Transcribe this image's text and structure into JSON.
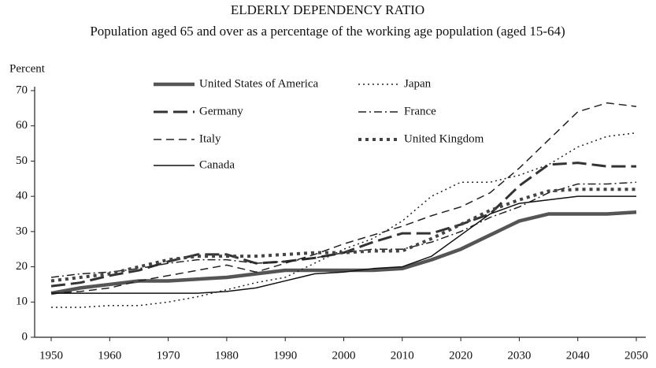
{
  "chart_data": {
    "type": "line",
    "title": "ELDERLY DEPENDENCY RATIO",
    "subtitle": "Population aged 65 and over as a percentage of the working age population (aged 15-64)",
    "y_label": "Percent",
    "x": [
      1950,
      1955,
      1960,
      1965,
      1970,
      1975,
      1980,
      1985,
      1990,
      1995,
      2000,
      2005,
      2010,
      2015,
      2020,
      2025,
      2030,
      2035,
      2040,
      2045,
      2050
    ],
    "series": [
      {
        "name": "United States of America",
        "color": "#555555",
        "values": [
          12.5,
          14,
          15,
          16,
          16,
          16.5,
          17,
          18,
          19,
          19,
          19,
          19,
          19.5,
          22,
          25,
          29,
          33,
          35,
          35,
          35,
          35.5
        ]
      },
      {
        "name": "Japan",
        "color": "#222222",
        "values": [
          8.5,
          8.5,
          9,
          9,
          10,
          11.5,
          13.5,
          15.5,
          17,
          21,
          25,
          28,
          33,
          40,
          44,
          44,
          46,
          49,
          54,
          57,
          58
        ]
      },
      {
        "name": "Germany",
        "color": "#333333",
        "values": [
          14.5,
          15.5,
          17.5,
          19,
          21.5,
          23.5,
          23.5,
          21,
          21.5,
          22.5,
          24,
          27,
          29.5,
          29.5,
          32,
          35,
          43,
          49,
          49.5,
          48.5,
          48.5
        ]
      },
      {
        "name": "France",
        "color": "#222222",
        "values": [
          17,
          18,
          18.5,
          19.5,
          21,
          22,
          22,
          21,
          21.5,
          22.5,
          24,
          25,
          25,
          27,
          30,
          34,
          37,
          41,
          43.5,
          43.5,
          44
        ]
      },
      {
        "name": "Italy",
        "color": "#222222",
        "values": [
          12.5,
          13,
          14,
          16,
          17.5,
          19,
          20.5,
          18.5,
          21,
          23.5,
          26.5,
          29,
          31.5,
          34.5,
          37,
          41,
          48,
          56,
          64,
          66.5,
          65.5
        ]
      },
      {
        "name": "United Kingdom",
        "color": "#444444",
        "values": [
          16,
          17,
          18,
          20,
          22,
          23,
          23,
          23,
          23.5,
          24,
          24,
          24.5,
          24.5,
          28,
          32,
          36,
          39,
          41.5,
          42,
          42,
          42
        ]
      },
      {
        "name": "Canada",
        "color": "#111111",
        "values": [
          12.5,
          12.5,
          12.5,
          12.5,
          12.5,
          12.5,
          13,
          14,
          16,
          18,
          18.5,
          19.5,
          20,
          23,
          29,
          35,
          38,
          39,
          40,
          40,
          40
        ]
      }
    ],
    "xlim": [
      1950,
      2050
    ],
    "xticks": [
      1950,
      1960,
      1970,
      1980,
      1990,
      2000,
      2010,
      2020,
      2030,
      2040,
      2050
    ],
    "ylim": [
      0,
      70
    ],
    "yticks": [
      0,
      10,
      20,
      30,
      40,
      50,
      60,
      70
    ],
    "grid": false
  }
}
